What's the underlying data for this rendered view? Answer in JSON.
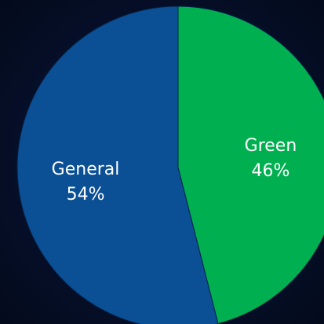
{
  "chart_data": {
    "type": "pie",
    "slices": [
      {
        "label": "Green",
        "percent_label": "46%",
        "value": 46,
        "color": "#00b050"
      },
      {
        "label": "General",
        "percent_label": "54%",
        "value": 54,
        "color": "#0b4f95"
      }
    ],
    "start_angle_deg": 0,
    "direction": "clockwise",
    "title": "",
    "legend": "none"
  },
  "colors": {
    "background": "#050d22",
    "slice_edge": "#06224a"
  }
}
